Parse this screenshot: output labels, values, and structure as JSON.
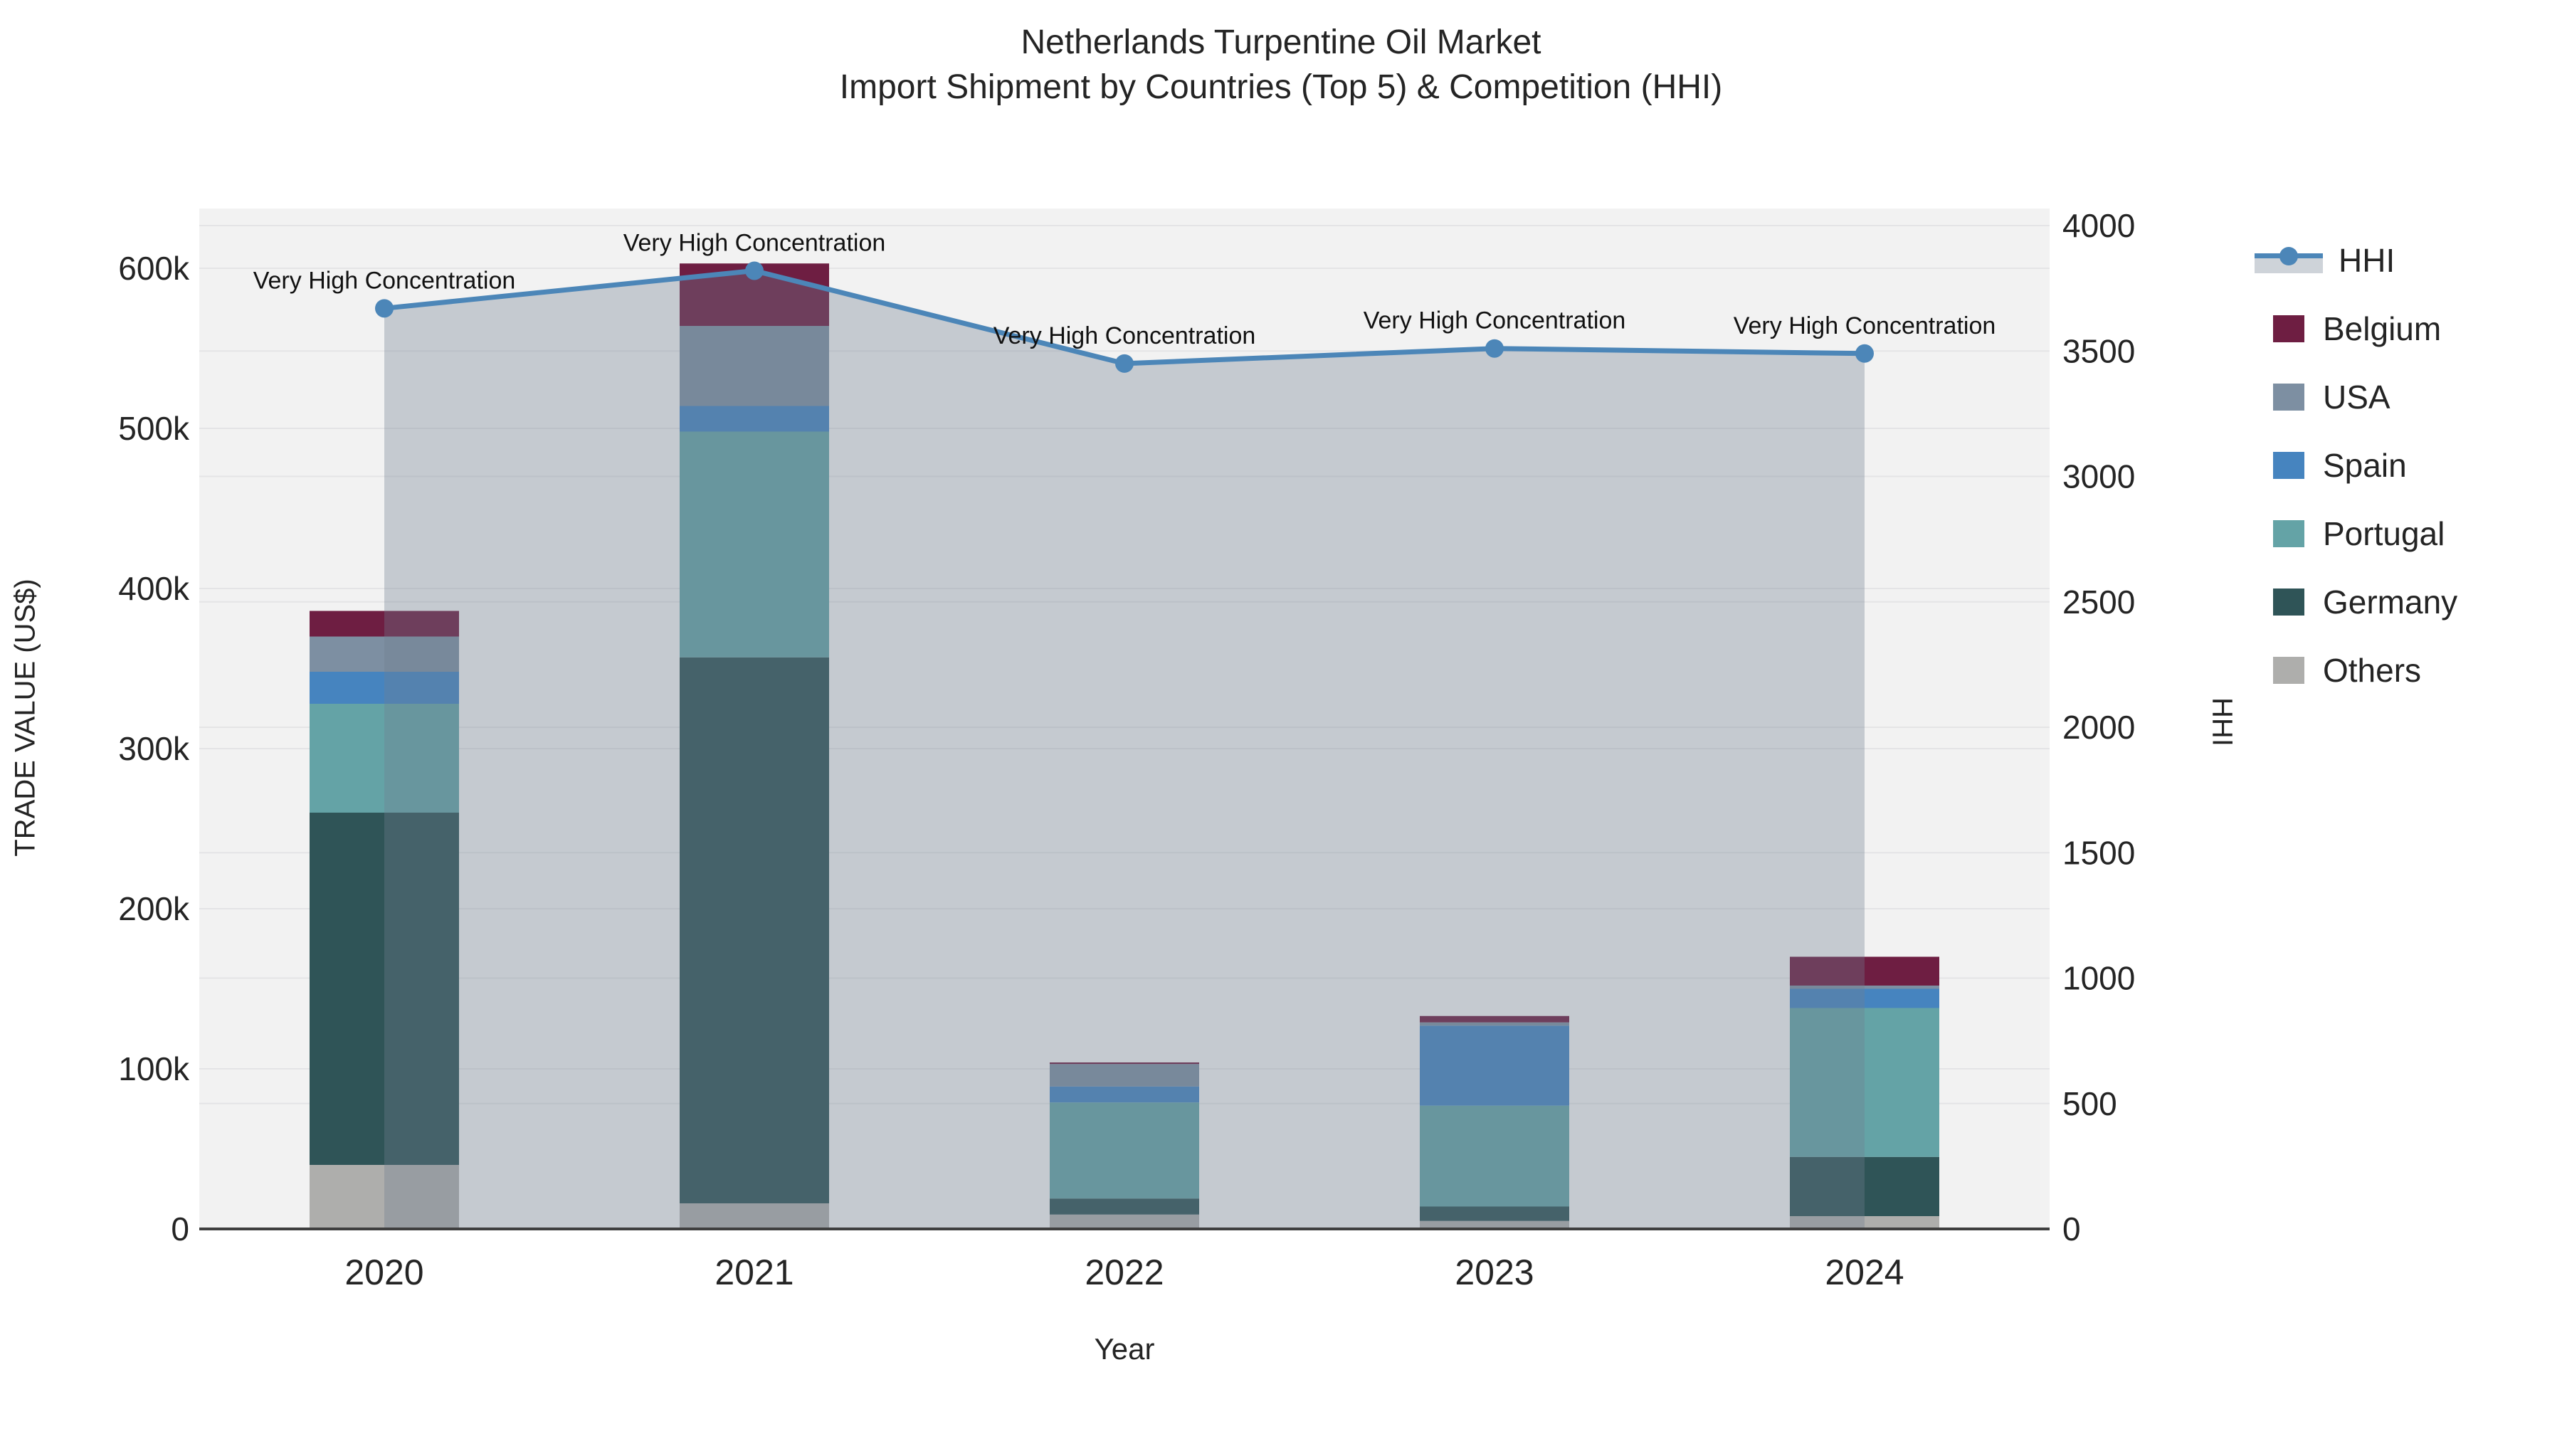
{
  "title": {
    "line1": "Netherlands Turpentine Oil Market",
    "line2": "Import Shipment by Countries (Top 5) & Competition (HHI)"
  },
  "axes": {
    "x": {
      "label": "Year",
      "tick_labels": [
        "2020",
        "2021",
        "2022",
        "2023",
        "2024"
      ]
    },
    "y_left": {
      "label": "TRADE VALUE (US$)",
      "tick_labels": [
        "0",
        "100k",
        "200k",
        "300k",
        "400k",
        "500k",
        "600k"
      ],
      "tick_values": [
        0,
        100000,
        200000,
        300000,
        400000,
        500000,
        600000
      ]
    },
    "y_right": {
      "label": "HHI",
      "tick_labels": [
        "0",
        "500",
        "1000",
        "1500",
        "2000",
        "2500",
        "3000",
        "3500",
        "4000"
      ],
      "tick_values": [
        0,
        500,
        1000,
        1500,
        2000,
        2500,
        3000,
        3500,
        4000
      ]
    }
  },
  "legend": {
    "items": [
      {
        "label": "HHI",
        "type": "line",
        "color": "#4c86b8"
      },
      {
        "label": "Belgium",
        "type": "square",
        "color": "#6e1e42"
      },
      {
        "label": "USA",
        "type": "square",
        "color": "#7d8fa2"
      },
      {
        "label": "Spain",
        "type": "square",
        "color": "#4684bf"
      },
      {
        "label": "Portugal",
        "type": "square",
        "color": "#64a3a6"
      },
      {
        "label": "Germany",
        "type": "square",
        "color": "#2f5457"
      },
      {
        "label": "Others",
        "type": "square",
        "color": "#aeaeac"
      }
    ]
  },
  "annotation_text": "Very High Concentration",
  "colors": {
    "plot_bg": "#f2f2f2",
    "grid": "#e4e4e6",
    "axis_line": "#3f3f3f",
    "hhi_line": "#4c86b8",
    "hhi_fill": "rgba(110,125,145,0.34)",
    "text": "#242424"
  },
  "chart_data": {
    "type": "bar",
    "subtype": "stacked-bars-with-line-overlay",
    "title": "Netherlands Turpentine Oil Market — Import Shipment by Countries (Top 5) & Competition (HHI)",
    "xlabel": "Year",
    "ylabel_left": "TRADE VALUE (US$)",
    "ylabel_right": "HHI",
    "categories": [
      "2020",
      "2021",
      "2022",
      "2023",
      "2024"
    ],
    "stack_order_bottom_to_top": [
      "Others",
      "Germany",
      "Portugal",
      "Spain",
      "USA",
      "Belgium"
    ],
    "series": [
      {
        "name": "Others",
        "color": "#aeaeac",
        "values": [
          40000,
          16000,
          9000,
          5000,
          8000
        ]
      },
      {
        "name": "Germany",
        "color": "#2f5457",
        "values": [
          220000,
          341000,
          10000,
          9000,
          37000
        ]
      },
      {
        "name": "Portugal",
        "color": "#64a3a6",
        "values": [
          68000,
          141000,
          60000,
          63000,
          93000
        ]
      },
      {
        "name": "Spain",
        "color": "#4684bf",
        "values": [
          20000,
          16000,
          10000,
          50000,
          12000
        ]
      },
      {
        "name": "USA",
        "color": "#7d8fa2",
        "values": [
          22000,
          50000,
          14000,
          2000,
          2000
        ]
      },
      {
        "name": "Belgium",
        "color": "#6e1e42",
        "values": [
          16000,
          39000,
          1000,
          4000,
          18000
        ]
      }
    ],
    "bar_totals": [
      386000,
      603000,
      104000,
      133000,
      170000
    ],
    "line_series": {
      "name": "HHI",
      "axis": "right",
      "values": [
        3670,
        3820,
        3450,
        3510,
        3490
      ],
      "point_annotations": [
        "Very High Concentration",
        "Very High Concentration",
        "Very High Concentration",
        "Very High Concentration",
        "Very High Concentration"
      ],
      "area_fill": true
    },
    "ylim_left": [
      0,
      637000
    ],
    "ylim_right": [
      0,
      4068
    ],
    "grid": true,
    "legend_position": "right"
  }
}
